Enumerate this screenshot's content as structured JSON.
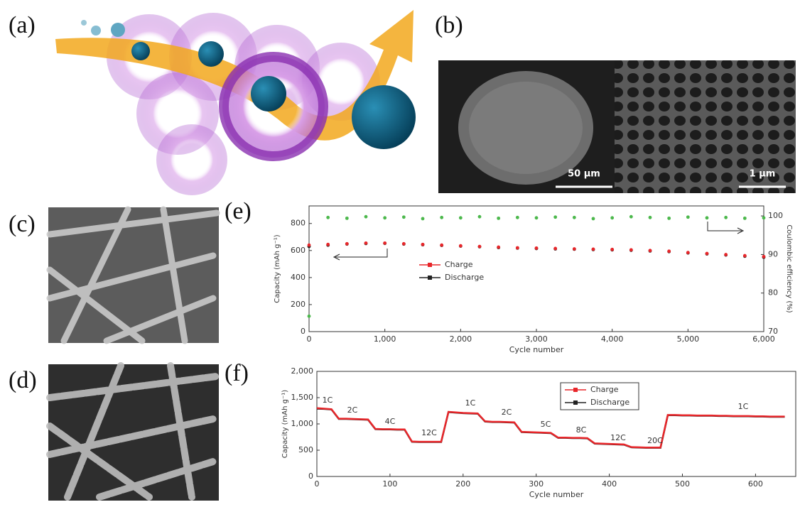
{
  "panel_labels": [
    "(a)",
    "(b)",
    "(c)",
    "(d)",
    "(e)",
    "(f)"
  ],
  "scale_bars": [
    "50 μm",
    "1 μm"
  ],
  "chart_data": [
    {
      "type": "scatter",
      "xlabel": "Cycle number",
      "ylabel": "Capacity (mAh g⁻¹)",
      "y2label": "Coulombic efficiency (%)",
      "x": [
        0,
        250,
        500,
        750,
        1000,
        1250,
        1500,
        1750,
        2000,
        2250,
        2500,
        2750,
        3000,
        3250,
        3500,
        3750,
        4000,
        4250,
        4500,
        4750,
        5000,
        5250,
        5500,
        5750,
        6000
      ],
      "series": [
        {
          "color": "#4cb84c",
          "axis": "y2",
          "values": [
            74,
            99.6,
            99.4,
            99.8,
            99.5,
            99.7,
            99.3,
            99.6,
            99.5,
            99.8,
            99.4,
            99.6,
            99.5,
            99.7,
            99.6,
            99.3,
            99.5,
            99.8,
            99.6,
            99.4,
            99.7,
            99.5,
            99.6,
            99.4,
            99.5
          ]
        },
        {
          "name": "Discharge",
          "color": "#222222",
          "values": [
            630,
            640,
            648,
            652,
            653,
            648,
            643,
            638,
            633,
            628,
            622,
            618,
            615,
            612,
            610,
            607,
            605,
            602,
            597,
            592,
            582,
            575,
            567,
            558,
            550
          ]
        },
        {
          "name": "Charge",
          "color": "#e8262a",
          "values": [
            640,
            645,
            650,
            655,
            655,
            650,
            645,
            640,
            635,
            630,
            625,
            620,
            618,
            615,
            612,
            610,
            608,
            605,
            600,
            595,
            585,
            578,
            570,
            562,
            555
          ]
        }
      ],
      "xlim": [
        0,
        6000
      ],
      "xticks": [
        0,
        {
          "value": 1000,
          "label": "1,000"
        },
        {
          "value": 2000,
          "label": "2,000"
        },
        {
          "value": 3000,
          "label": "3,000"
        },
        {
          "value": 4000,
          "label": "4,000"
        },
        {
          "value": 5000,
          "label": "5,000"
        },
        {
          "value": 6000,
          "label": "6,000"
        }
      ],
      "ylim": [
        0,
        930
      ],
      "yticks": [
        0,
        200,
        400,
        600,
        800
      ],
      "y2lim": [
        70,
        102.6
      ],
      "y2ticks": [
        70,
        80,
        90,
        100
      ]
    },
    {
      "type": "line",
      "xlabel": "Cycle number",
      "ylabel": "Capacity (mAh g⁻¹)",
      "x": [
        0,
        10,
        20,
        30,
        40,
        50,
        60,
        70,
        80,
        90,
        100,
        110,
        120,
        130,
        140,
        150,
        160,
        170,
        180,
        190,
        200,
        210,
        220,
        230,
        240,
        250,
        260,
        270,
        280,
        290,
        300,
        310,
        320,
        330,
        340,
        350,
        360,
        370,
        380,
        390,
        400,
        410,
        420,
        430,
        440,
        450,
        460,
        470,
        480,
        490,
        500,
        510,
        520,
        530,
        540,
        550,
        560,
        570,
        580,
        590,
        600,
        610,
        620,
        630,
        640
      ],
      "series": [
        {
          "name": "Charge",
          "color": "#e8262a",
          "values": [
            1300,
            1290,
            1280,
            1100,
            1100,
            1095,
            1090,
            1085,
            905,
            900,
            900,
            895,
            895,
            665,
            660,
            660,
            660,
            660,
            1230,
            1220,
            1210,
            1205,
            1200,
            1050,
            1040,
            1040,
            1035,
            1030,
            850,
            845,
            840,
            835,
            830,
            740,
            740,
            735,
            735,
            730,
            630,
            625,
            620,
            615,
            610,
            560,
            555,
            550,
            550,
            550,
            1170,
            1170,
            1165,
            1165,
            1160,
            1160,
            1160,
            1155,
            1155,
            1150,
            1150,
            1150,
            1145,
            1145,
            1140,
            1140,
            1140
          ]
        },
        {
          "name": "Discharge",
          "color": "#222222",
          "values": [
            1290,
            1285,
            1275,
            1095,
            1095,
            1090,
            1085,
            1080,
            900,
            895,
            895,
            890,
            890,
            660,
            655,
            655,
            655,
            655,
            1225,
            1215,
            1205,
            1200,
            1195,
            1045,
            1035,
            1035,
            1030,
            1025,
            845,
            840,
            835,
            830,
            825,
            735,
            735,
            730,
            730,
            725,
            625,
            620,
            615,
            610,
            605,
            555,
            550,
            545,
            545,
            545,
            1165,
            1165,
            1160,
            1160,
            1155,
            1155,
            1155,
            1150,
            1150,
            1145,
            1145,
            1145,
            1140,
            1140,
            1135,
            1135,
            1135
          ]
        }
      ],
      "annotations": [
        "1C",
        "2C",
        "4C",
        "12C",
        "1C",
        "2C",
        "5C",
        "8C",
        "12C",
        "20C",
        "1C"
      ],
      "xlim": [
        0,
        655
      ],
      "xticks": [
        0,
        100,
        200,
        300,
        400,
        500,
        600
      ],
      "ylim": [
        0,
        2000
      ],
      "yticks": [
        0,
        500,
        {
          "value": 1000,
          "label": "1,000"
        },
        {
          "value": 1500,
          "label": "1,500"
        },
        {
          "value": 2000,
          "label": "2,000"
        }
      ]
    }
  ]
}
